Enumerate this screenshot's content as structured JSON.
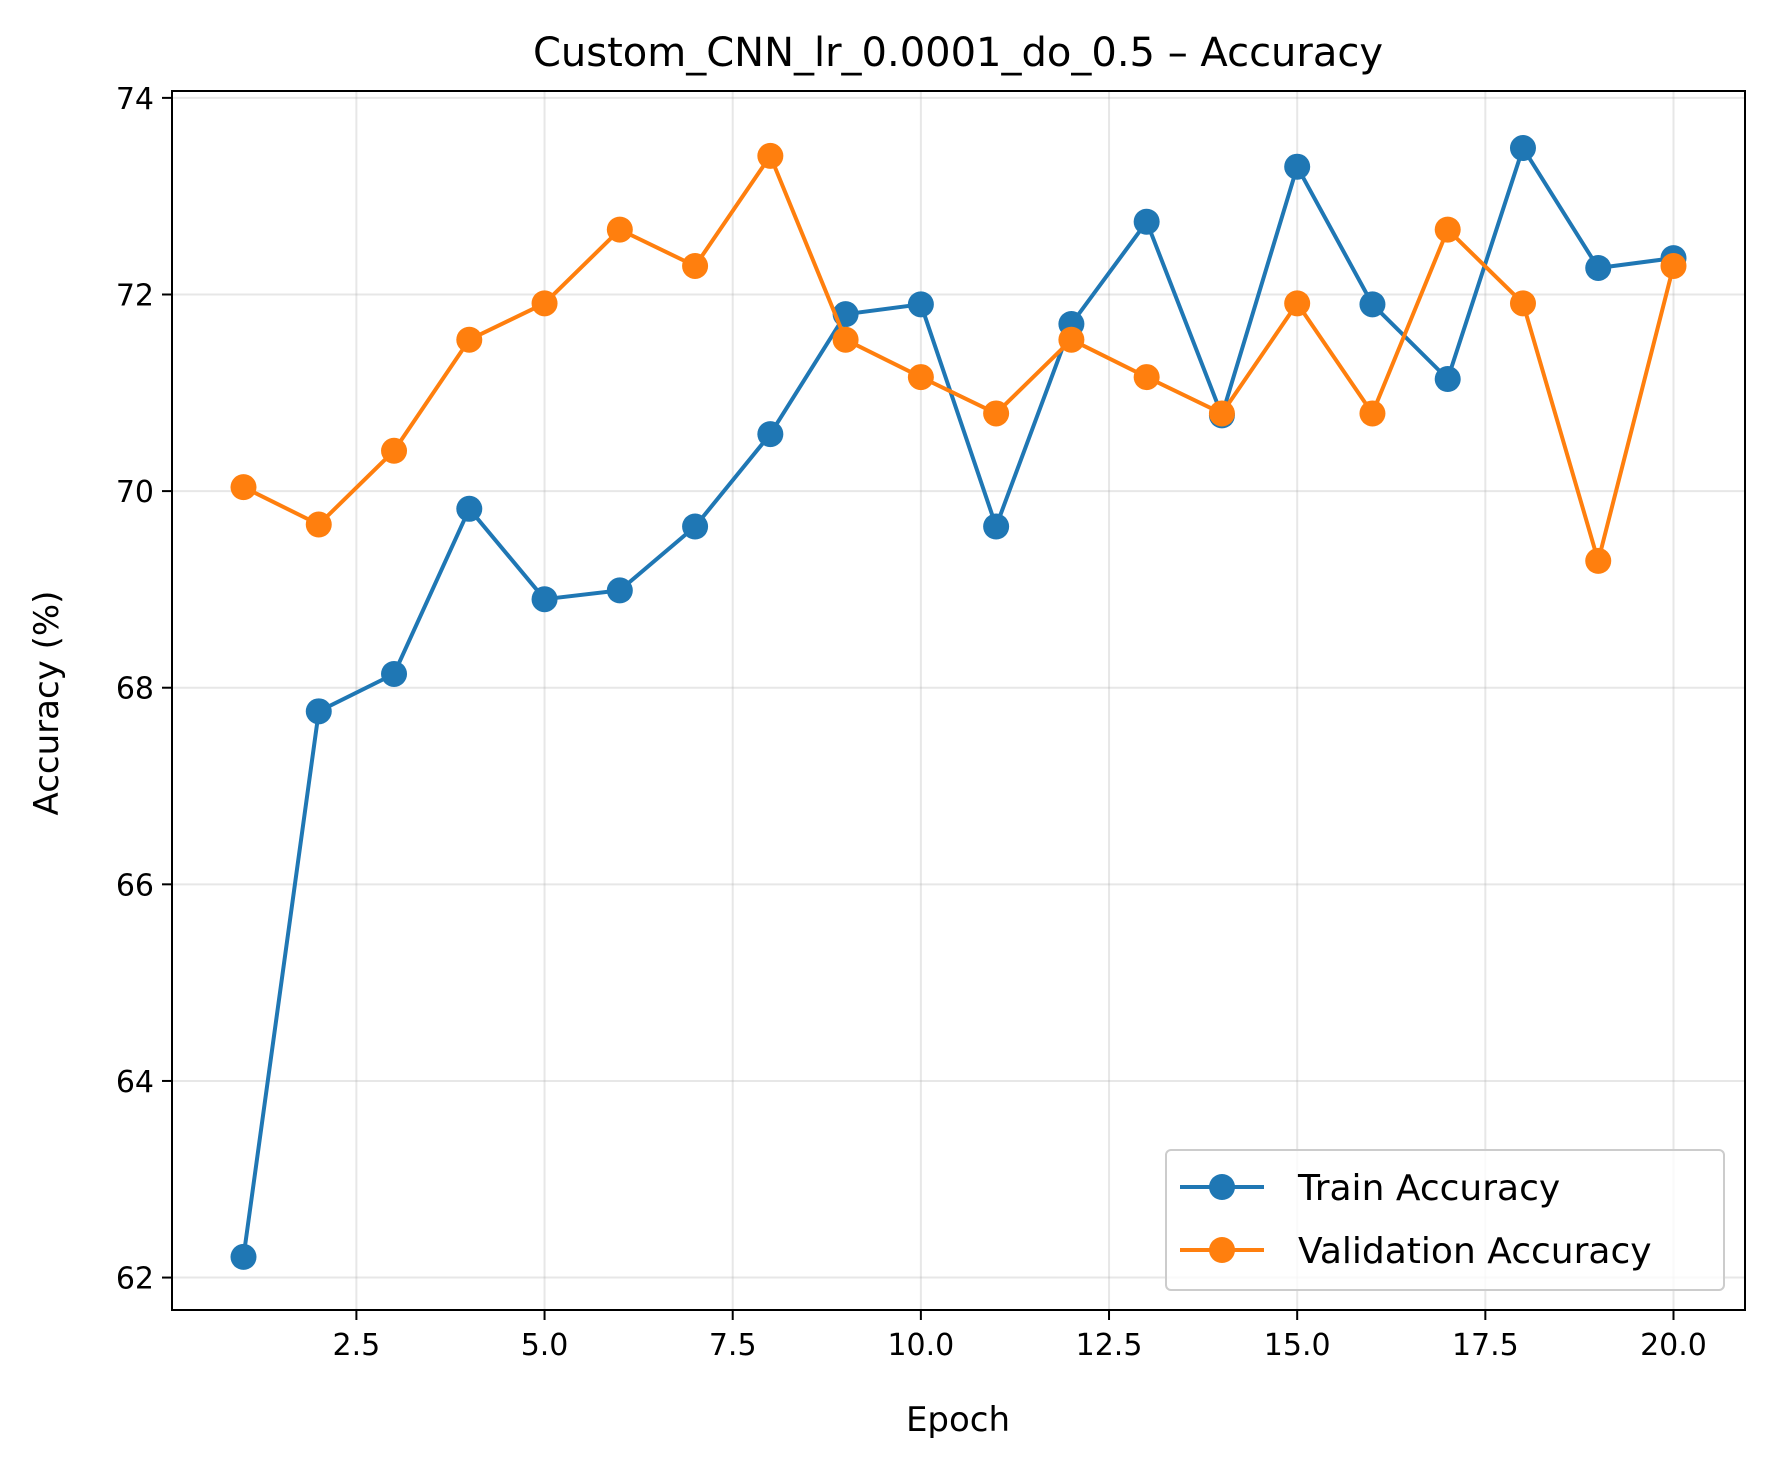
{
  "chart_data": {
    "type": "line",
    "title": "Custom_CNN_lr_0.0001_do_0.5 – Accuracy",
    "xlabel": "Epoch",
    "ylabel": "Accuracy (%)",
    "xlim": [
      0.05,
      20.95
    ],
    "ylim": [
      61.67,
      74.07
    ],
    "xticks": [
      2.5,
      5.0,
      7.5,
      10.0,
      12.5,
      15.0,
      17.5,
      20.0
    ],
    "xtick_labels": [
      "2.5",
      "5.0",
      "7.5",
      "10.0",
      "12.5",
      "15.0",
      "17.5",
      "20.0"
    ],
    "yticks": [
      62,
      64,
      66,
      68,
      70,
      72,
      74
    ],
    "ytick_labels": [
      "62",
      "64",
      "66",
      "68",
      "70",
      "72",
      "74"
    ],
    "grid": true,
    "legend_position": "lower-right",
    "x": [
      1,
      2,
      3,
      4,
      5,
      6,
      7,
      8,
      9,
      10,
      11,
      12,
      13,
      14,
      15,
      16,
      17,
      18,
      19,
      20
    ],
    "series": [
      {
        "name": "Train Accuracy",
        "color": "#1f77b4",
        "values": [
          62.21,
          67.76,
          68.14,
          69.82,
          68.9,
          68.99,
          69.64,
          70.58,
          71.8,
          71.9,
          69.64,
          71.7,
          72.74,
          70.77,
          73.3,
          71.9,
          71.14,
          73.49,
          72.27,
          72.37
        ]
      },
      {
        "name": "Validation Accuracy",
        "color": "#ff7f0e",
        "values": [
          70.04,
          69.66,
          70.41,
          71.54,
          71.91,
          72.66,
          72.29,
          73.41,
          71.54,
          71.16,
          70.79,
          71.54,
          71.16,
          70.79,
          71.91,
          70.79,
          72.66,
          71.91,
          69.29,
          72.29
        ]
      }
    ]
  }
}
